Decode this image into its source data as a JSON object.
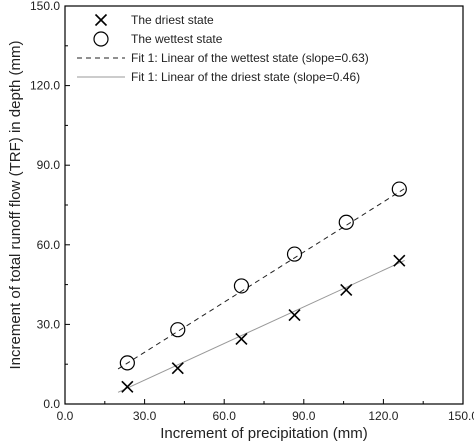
{
  "chart_data": {
    "type": "scatter",
    "title": "",
    "xlabel": "Increment of precipitation (mm)",
    "ylabel": "Increment of total runoff flow (TRF) in depth (mm)",
    "xlim": [
      0,
      150
    ],
    "ylim": [
      0,
      150
    ],
    "x_ticks": [
      "0.0",
      "30.0",
      "60.0",
      "90.0",
      "120.0",
      "150.0"
    ],
    "y_ticks": [
      "0.0",
      "30.0",
      "60.0",
      "90.0",
      "120.0",
      "150.0"
    ],
    "grid": false,
    "legend_position": "top-left",
    "series": [
      {
        "name": "The driest state",
        "marker": "x",
        "x": [
          23.5,
          42.5,
          66.5,
          86.5,
          106.0,
          126.0
        ],
        "y": [
          6.5,
          13.5,
          24.5,
          33.5,
          43.0,
          54.0
        ]
      },
      {
        "name": "The wettest state",
        "marker": "circle",
        "x": [
          23.5,
          42.5,
          66.5,
          86.5,
          106.0,
          126.0
        ],
        "y": [
          15.5,
          28.0,
          44.5,
          56.5,
          68.5,
          81.0
        ]
      }
    ],
    "fits": [
      {
        "name": "Fit 1: Linear of the wettest state (slope=0.63)",
        "style": "dashed",
        "x": [
          20.0,
          128.0
        ],
        "y": [
          13.2,
          81.2
        ]
      },
      {
        "name": "Fit 1: Linear of the driest state (slope=0.46)",
        "style": "solid",
        "color": "#999999",
        "x": [
          20.0,
          128.0
        ],
        "y": [
          4.4,
          54.1
        ]
      }
    ]
  }
}
